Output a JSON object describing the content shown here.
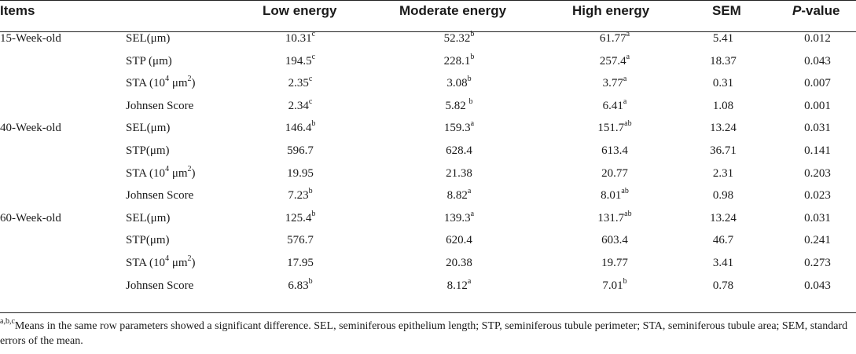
{
  "headers": {
    "items": "Items",
    "low": "Low energy",
    "moderate": "Moderate energy",
    "high": "High energy",
    "sem": "SEM",
    "p_italic": "P",
    "p_rest": "-value"
  },
  "groups": [
    {
      "label": "15-Week-old",
      "rows": [
        {
          "param": "SEL(μm)",
          "low": "10.31",
          "low_sup": "c",
          "mod": "52.32",
          "mod_sup": "b",
          "high": "61.77",
          "high_sup": "a",
          "sem": "5.41",
          "p": "0.012"
        },
        {
          "param": "STP (μm)",
          "low": "194.5",
          "low_sup": "c",
          "mod": "228.1",
          "mod_sup": "b",
          "high": "257.4",
          "high_sup": "a",
          "sem": "18.37",
          "p": "0.043"
        },
        {
          "param_pre": "STA (10",
          "param_sup": "4",
          "param_mid": " μm",
          "param_sup2": "2",
          "param_post": ")",
          "low": "2.35",
          "low_sup": "c",
          "mod": "3.08",
          "mod_sup": "b",
          "high": "3.77",
          "high_sup": "a",
          "sem": "0.31",
          "p": "0.007"
        },
        {
          "param": "Johnsen Score",
          "low": "2.34",
          "low_sup": "c",
          "mod": "5.82 ",
          "mod_sup": "b",
          "high": "6.41",
          "high_sup": "a",
          "sem": "1.08",
          "p": "0.001"
        }
      ]
    },
    {
      "label": "40-Week-old",
      "rows": [
        {
          "param": "SEL(μm)",
          "low": "146.4",
          "low_sup": "b",
          "mod": "159.3",
          "mod_sup": "a",
          "high": "151.7",
          "high_sup": "ab",
          "sem": "13.24",
          "p": "0.031"
        },
        {
          "param": "STP(μm)",
          "low": "596.7",
          "low_sup": "",
          "mod": "628.4",
          "mod_sup": "",
          "high": "613.4",
          "high_sup": "",
          "sem": "36.71",
          "p": "0.141"
        },
        {
          "param_pre": "STA (10",
          "param_sup": "4",
          "param_mid": " μm",
          "param_sup2": "2",
          "param_post": ")",
          "low": "19.95",
          "low_sup": "",
          "mod": "21.38",
          "mod_sup": "",
          "high": "20.77",
          "high_sup": "",
          "sem": "2.31",
          "p": "0.203"
        },
        {
          "param": "Johnsen Score",
          "low": "7.23",
          "low_sup": "b",
          "mod": "8.82",
          "mod_sup": "a",
          "high": "8.01",
          "high_sup": "ab",
          "sem": "0.98",
          "p": "0.023"
        }
      ]
    },
    {
      "label": "60-Week-old",
      "rows": [
        {
          "param": "SEL(μm)",
          "low": "125.4",
          "low_sup": "b",
          "mod": "139.3",
          "mod_sup": "a",
          "high": "131.7",
          "high_sup": "ab",
          "sem": "13.24",
          "p": "0.031"
        },
        {
          "param": "STP(μm)",
          "low": "576.7",
          "low_sup": "",
          "mod": "620.4",
          "mod_sup": "",
          "high": "603.4",
          "high_sup": "",
          "sem": "46.7",
          "p": "0.241"
        },
        {
          "param_pre": "STA (10",
          "param_sup": "4",
          "param_mid": " μm",
          "param_sup2": "2",
          "param_post": ")",
          "low": "17.95",
          "low_sup": "",
          "mod": "20.38",
          "mod_sup": "",
          "high": "19.77",
          "high_sup": "",
          "sem": "3.41",
          "p": "0.273"
        },
        {
          "param": "Johnsen Score",
          "low": "6.83",
          "low_sup": "b",
          "mod": "8.12",
          "mod_sup": "a",
          "high": "7.01",
          "high_sup": "b",
          "sem": "0.78",
          "p": "0.043"
        }
      ]
    }
  ],
  "footnote": {
    "sup": "a,b,c",
    "text": "Means in the same row parameters showed a significant difference. SEL, seminiferous epithelium length; STP, seminiferous tubule perimeter; STA, seminiferous tubule area; SEM, standard errors of the mean."
  }
}
